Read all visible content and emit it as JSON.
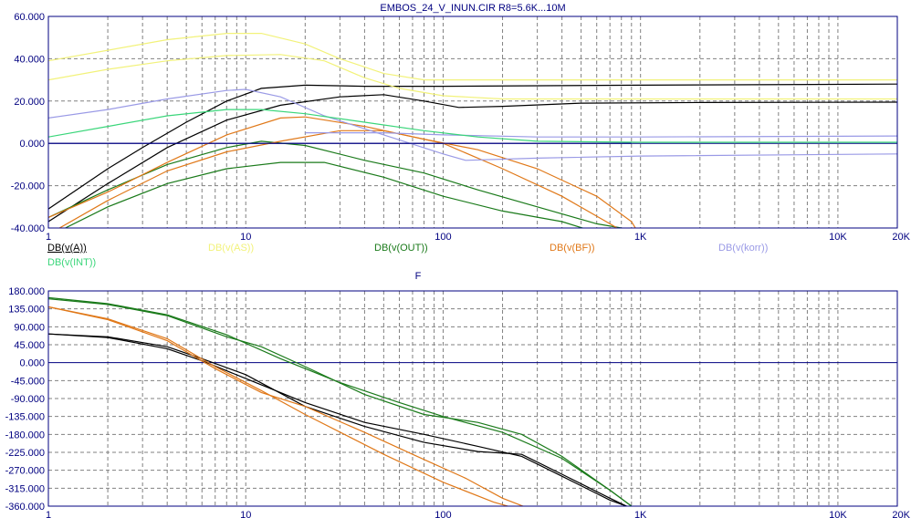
{
  "title": "EMBOS_24_V_INUN.CIR R8=5.6K...10M",
  "colors": {
    "axis": "#000080",
    "black": "#000000",
    "yellow": "#f2f27a",
    "darkgreen": "#1a7a1a",
    "orange": "#e07818",
    "lavender": "#9a9ae6",
    "green": "#3ad67a"
  },
  "chart_data": [
    {
      "type": "line",
      "scale": "log-x",
      "xlim": [
        1,
        20000
      ],
      "ylim": [
        -40,
        60
      ],
      "xticks": [
        {
          "v": 1,
          "label": "1"
        },
        {
          "v": 10,
          "label": "10"
        },
        {
          "v": 100,
          "label": "100"
        },
        {
          "v": 1000,
          "label": "1K"
        },
        {
          "v": 10000,
          "label": "10K"
        },
        {
          "v": 20000,
          "label": "20K"
        }
      ],
      "yticks": [
        {
          "v": 60,
          "label": "60.000"
        },
        {
          "v": 40,
          "label": "40.000"
        },
        {
          "v": 20,
          "label": "20.000"
        },
        {
          "v": 0,
          "label": "0.000"
        },
        {
          "v": -20,
          "label": "-20.000"
        },
        {
          "v": -40,
          "label": "-40.000"
        }
      ],
      "legend": [
        {
          "label": "DB(v(A))",
          "color": "#000000",
          "underline": true
        },
        {
          "label": "DB(v(AS))",
          "color": "#f2f27a"
        },
        {
          "label": "DB(v(OUT))",
          "color": "#1a7a1a"
        },
        {
          "label": "DB(v(BF))",
          "color": "#e07818"
        },
        {
          "label": "DB(v(korr))",
          "color": "#9a9ae6"
        },
        {
          "label": "DB(v(INT))",
          "color": "#3ad67a"
        }
      ],
      "series": [
        {
          "name": "DB(v(A))",
          "color": "#000000",
          "points": [
            [
              1,
              -31
            ],
            [
              2,
              -12
            ],
            [
              3,
              -2
            ],
            [
              5,
              10
            ],
            [
              8,
              20
            ],
            [
              12,
              26
            ],
            [
              20,
              27.5
            ],
            [
              40,
              27
            ],
            [
              100,
              27
            ],
            [
              1000,
              27.5
            ],
            [
              20000,
              28
            ]
          ]
        },
        {
          "color": "#000000",
          "points": [
            [
              1,
              -37
            ],
            [
              2,
              -19
            ],
            [
              4,
              -2
            ],
            [
              8,
              11
            ],
            [
              15,
              18
            ],
            [
              30,
              22
            ],
            [
              50,
              23
            ],
            [
              80,
              20
            ],
            [
              120,
              17
            ],
            [
              200,
              17.5
            ],
            [
              500,
              19
            ],
            [
              2000,
              19.3
            ],
            [
              20000,
              19.5
            ]
          ]
        },
        {
          "name": "DB(v(AS))",
          "color": "#f2f27a",
          "points": [
            [
              1,
              39
            ],
            [
              2,
              44
            ],
            [
              4,
              49
            ],
            [
              8,
              52
            ],
            [
              12,
              52
            ],
            [
              20,
              47
            ],
            [
              30,
              40
            ],
            [
              50,
              33
            ],
            [
              80,
              30
            ],
            [
              200,
              30
            ],
            [
              20000,
              30
            ]
          ]
        },
        {
          "color": "#f2f27a",
          "points": [
            [
              1,
              30
            ],
            [
              2,
              35
            ],
            [
              4,
              39
            ],
            [
              8,
              41.5
            ],
            [
              15,
              42
            ],
            [
              25,
              39
            ],
            [
              40,
              31
            ],
            [
              60,
              26
            ],
            [
              100,
              22.5
            ],
            [
              200,
              21
            ],
            [
              20000,
              21
            ]
          ]
        },
        {
          "name": "DB(v(OUT))",
          "color": "#1a7a1a",
          "points": [
            [
              1,
              -35
            ],
            [
              2,
              -22
            ],
            [
              4,
              -10
            ],
            [
              8,
              -2
            ],
            [
              12,
              1
            ],
            [
              20,
              -1
            ],
            [
              40,
              -8
            ],
            [
              80,
              -14
            ],
            [
              150,
              -22
            ],
            [
              300,
              -30
            ],
            [
              600,
              -38
            ],
            [
              800,
              -40
            ]
          ]
        },
        {
          "color": "#1a7a1a",
          "points": [
            [
              1,
              -44
            ],
            [
              2,
              -30
            ],
            [
              4,
              -19
            ],
            [
              8,
              -12
            ],
            [
              15,
              -9
            ],
            [
              25,
              -9
            ],
            [
              50,
              -16
            ],
            [
              100,
              -25
            ],
            [
              200,
              -32
            ],
            [
              400,
              -37
            ],
            [
              700,
              -44
            ]
          ]
        },
        {
          "name": "DB(v(BF))",
          "color": "#e07818",
          "points": [
            [
              1,
              -35
            ],
            [
              2,
              -23
            ],
            [
              4,
              -9
            ],
            [
              8,
              4
            ],
            [
              15,
              12
            ],
            [
              20,
              12.5
            ],
            [
              40,
              8
            ],
            [
              80,
              2
            ],
            [
              150,
              -3
            ],
            [
              300,
              -12
            ],
            [
              600,
              -25
            ],
            [
              900,
              -37
            ],
            [
              1000,
              -44
            ]
          ]
        },
        {
          "color": "#e07818",
          "points": [
            [
              1,
              -43
            ],
            [
              2,
              -27
            ],
            [
              4,
              -13
            ],
            [
              8,
              -4
            ],
            [
              15,
              1
            ],
            [
              30,
              6
            ],
            [
              50,
              6
            ],
            [
              100,
              0
            ],
            [
              200,
              -12
            ],
            [
              400,
              -25
            ],
            [
              700,
              -38
            ],
            [
              900,
              -44
            ]
          ]
        },
        {
          "name": "DB(v(korr))",
          "color": "#9a9ae6",
          "points": [
            [
              1,
              12
            ],
            [
              2,
              16
            ],
            [
              4,
              21
            ],
            [
              8,
              25
            ],
            [
              10,
              25.5
            ],
            [
              15,
              22
            ],
            [
              25,
              13
            ],
            [
              50,
              4
            ],
            [
              100,
              -5
            ],
            [
              130,
              -8
            ],
            [
              300,
              -7
            ],
            [
              1000,
              -6
            ],
            [
              20000,
              -5
            ]
          ]
        },
        {
          "color": "#9a9ae6",
          "points": [
            [
              20,
              5
            ],
            [
              50,
              5
            ],
            [
              100,
              4
            ],
            [
              300,
              3
            ],
            [
              1000,
              3
            ],
            [
              20000,
              3.5
            ]
          ]
        },
        {
          "name": "DB(v(INT))",
          "color": "#3ad67a",
          "points": [
            [
              1,
              3
            ],
            [
              2,
              8
            ],
            [
              4,
              13
            ],
            [
              8,
              16
            ],
            [
              12,
              16
            ],
            [
              20,
              14
            ],
            [
              40,
              10
            ],
            [
              80,
              6
            ],
            [
              150,
              3
            ],
            [
              300,
              1
            ],
            [
              1000,
              0.5
            ],
            [
              20000,
              0.5
            ]
          ]
        },
        {
          "color": "#000080",
          "points": [
            [
              1,
              0
            ],
            [
              900,
              0
            ]
          ]
        }
      ]
    },
    {
      "type": "line",
      "scale": "log-x",
      "xlabel": "F",
      "xlim": [
        1,
        20000
      ],
      "ylim": [
        -360,
        180
      ],
      "xticks": [
        {
          "v": 1,
          "label": "1"
        },
        {
          "v": 10,
          "label": "10"
        },
        {
          "v": 100,
          "label": "100"
        },
        {
          "v": 1000,
          "label": "1K"
        },
        {
          "v": 10000,
          "label": "10K"
        },
        {
          "v": 20000,
          "label": "20K"
        }
      ],
      "yticks": [
        {
          "v": 180,
          "label": "180.000"
        },
        {
          "v": 135,
          "label": "135.000"
        },
        {
          "v": 90,
          "label": "90.000"
        },
        {
          "v": 45,
          "label": "45.000"
        },
        {
          "v": 0,
          "label": "0.000"
        },
        {
          "v": -45,
          "label": "-45.000"
        },
        {
          "v": -90,
          "label": "-90.000"
        },
        {
          "v": -135,
          "label": "-135.000"
        },
        {
          "v": -180,
          "label": "-180.000"
        },
        {
          "v": -225,
          "label": "-225.000"
        },
        {
          "v": -270,
          "label": "-270.000"
        },
        {
          "v": -315,
          "label": "-315.000"
        },
        {
          "v": -360,
          "label": "-360.000"
        }
      ],
      "series": [
        {
          "color": "#1a7a1a",
          "points": [
            [
              1,
              163
            ],
            [
              2,
              148
            ],
            [
              4,
              120
            ],
            [
              8,
              70
            ],
            [
              15,
              10
            ],
            [
              30,
              -50
            ],
            [
              60,
              -100
            ],
            [
              100,
              -135
            ],
            [
              200,
              -175
            ],
            [
              400,
              -240
            ],
            [
              700,
              -320
            ],
            [
              900,
              -360
            ]
          ]
        },
        {
          "color": "#1a7a1a",
          "points": [
            [
              1,
              160
            ],
            [
              2,
              146
            ],
            [
              4,
              118
            ],
            [
              8,
              65
            ],
            [
              12,
              40
            ],
            [
              20,
              -10
            ],
            [
              40,
              -80
            ],
            [
              80,
              -130
            ],
            [
              150,
              -150
            ],
            [
              250,
              -180
            ],
            [
              400,
              -235
            ],
            [
              700,
              -320
            ],
            [
              900,
              -360
            ]
          ]
        },
        {
          "color": "#000000",
          "points": [
            [
              1,
              72
            ],
            [
              2,
              65
            ],
            [
              4,
              40
            ],
            [
              6,
              10
            ],
            [
              10,
              -30
            ],
            [
              20,
              -110
            ],
            [
              40,
              -160
            ],
            [
              80,
              -200
            ],
            [
              150,
              -223
            ],
            [
              250,
              -230
            ],
            [
              400,
              -280
            ],
            [
              700,
              -340
            ],
            [
              850,
              -360
            ]
          ]
        },
        {
          "color": "#000000",
          "points": [
            [
              1,
              72
            ],
            [
              2,
              63
            ],
            [
              4,
              35
            ],
            [
              6,
              5
            ],
            [
              10,
              -40
            ],
            [
              20,
              -100
            ],
            [
              40,
              -150
            ],
            [
              80,
              -180
            ],
            [
              150,
              -210
            ],
            [
              250,
              -235
            ],
            [
              400,
              -285
            ],
            [
              700,
              -345
            ],
            [
              850,
              -360
            ]
          ]
        },
        {
          "color": "#e07818",
          "points": [
            [
              1,
              140
            ],
            [
              2,
              110
            ],
            [
              4,
              60
            ],
            [
              7,
              -10
            ],
            [
              12,
              -70
            ],
            [
              20,
              -130
            ],
            [
              50,
              -230
            ],
            [
              100,
              -300
            ],
            [
              180,
              -350
            ],
            [
              220,
              -362
            ]
          ]
        },
        {
          "color": "#e07818",
          "points": [
            [
              1,
              140
            ],
            [
              2,
              108
            ],
            [
              4,
              55
            ],
            [
              7,
              -15
            ],
            [
              12,
              -75
            ],
            [
              20,
              -110
            ],
            [
              40,
              -175
            ],
            [
              70,
              -230
            ],
            [
              130,
              -290
            ],
            [
              200,
              -340
            ],
            [
              260,
              -362
            ]
          ]
        }
      ]
    }
  ]
}
